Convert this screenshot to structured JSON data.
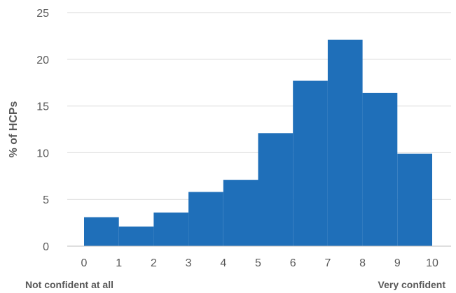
{
  "chart_data": {
    "type": "bar",
    "x_ticks": [
      "0",
      "1",
      "2",
      "3",
      "4",
      "5",
      "6",
      "7",
      "8",
      "9",
      "10"
    ],
    "values": [
      3.1,
      2.1,
      3.6,
      5.8,
      7.1,
      12.1,
      17.7,
      22.1,
      16.4,
      9.9
    ],
    "bin_edges": [
      0,
      1,
      2,
      3,
      4,
      5,
      6,
      7,
      8,
      9,
      10
    ],
    "ylim": [
      0,
      25
    ],
    "y_ticks": [
      "0",
      "5",
      "10",
      "15",
      "20",
      "25"
    ],
    "ylabel": "% of HCPs",
    "xlabel_left": "Not confident  at all",
    "xlabel_right": "Very confident",
    "grid": true,
    "colors": {
      "bar": "#1F6FB9",
      "grid": "#D9D9D9",
      "axis": "#BFBFBF",
      "text": "#595959"
    }
  }
}
